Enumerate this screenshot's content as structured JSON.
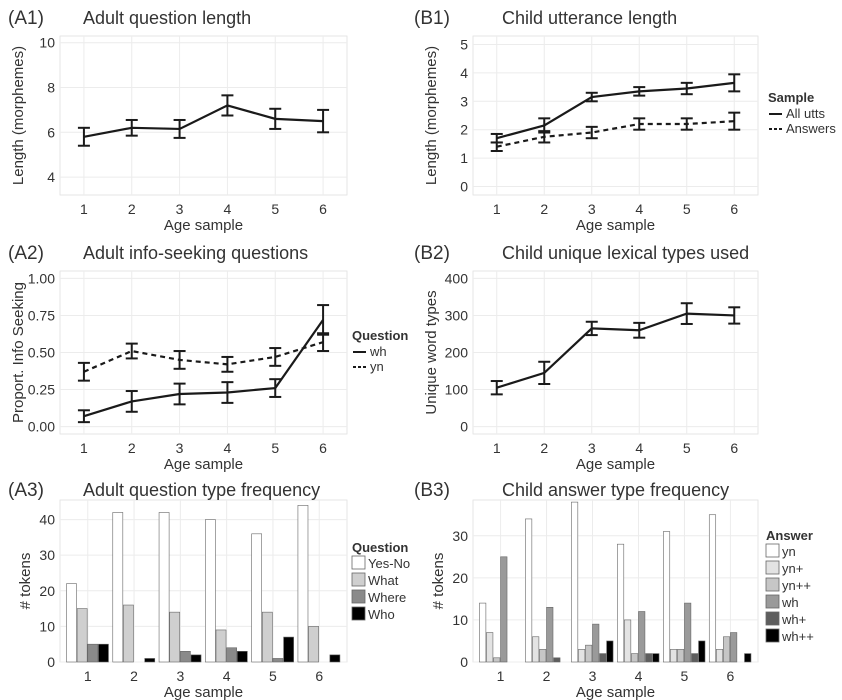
{
  "colors": {
    "panel_bg": "#ffffff",
    "grid": "#ececec",
    "axis_text": "#333333",
    "line": "#1a1a1a",
    "bar_outline": "#666666"
  },
  "chart_data": [
    {
      "id": "A1",
      "tag": "(A1)",
      "type": "line",
      "title": "Adult question length",
      "xlabel": "Age sample",
      "ylabel": "Length (morphemes)",
      "x": [
        1,
        2,
        3,
        4,
        5,
        6
      ],
      "xlim": [
        0.5,
        6.5
      ],
      "ylim": [
        3.2,
        10.3
      ],
      "yticks": [
        4,
        6,
        8,
        10
      ],
      "grid": true,
      "series": [
        {
          "name": "",
          "style": "solid",
          "values": [
            5.8,
            6.2,
            6.15,
            7.2,
            6.6,
            6.5
          ],
          "err": [
            0.4,
            0.35,
            0.4,
            0.45,
            0.45,
            0.5
          ]
        }
      ]
    },
    {
      "id": "B1",
      "tag": "(B1)",
      "type": "line",
      "title": "Child utterance length",
      "xlabel": "Age sample",
      "ylabel": "Length (morphemes)",
      "x": [
        1,
        2,
        3,
        4,
        5,
        6
      ],
      "xlim": [
        0.5,
        6.5
      ],
      "ylim": [
        -0.3,
        5.3
      ],
      "yticks": [
        0,
        1,
        2,
        3,
        4,
        5
      ],
      "grid": true,
      "legend": {
        "title": "Sample",
        "placement": "right"
      },
      "series": [
        {
          "name": "All utts",
          "style": "solid",
          "values": [
            1.7,
            2.15,
            3.15,
            3.35,
            3.45,
            3.65
          ],
          "err": [
            0.15,
            0.25,
            0.15,
            0.15,
            0.2,
            0.3
          ]
        },
        {
          "name": "Answers",
          "style": "dashed",
          "values": [
            1.4,
            1.75,
            1.9,
            2.2,
            2.2,
            2.3
          ],
          "err": [
            0.15,
            0.2,
            0.2,
            0.2,
            0.2,
            0.3
          ]
        }
      ]
    },
    {
      "id": "A2",
      "tag": "(A2)",
      "type": "line",
      "title": "Adult info-seeking questions",
      "xlabel": "Age sample",
      "ylabel": "Proport. Info Seeking",
      "x": [
        1,
        2,
        3,
        4,
        5,
        6
      ],
      "xlim": [
        0.5,
        6.5
      ],
      "ylim": [
        -0.05,
        1.05
      ],
      "yticks": [
        0.0,
        0.25,
        0.5,
        0.75,
        1.0
      ],
      "yticklabels": [
        "0.00",
        "0.25",
        "0.50",
        "0.75",
        "1.00"
      ],
      "grid": true,
      "legend": {
        "title": "Question",
        "placement": "right"
      },
      "series": [
        {
          "name": "wh",
          "style": "solid",
          "values": [
            0.07,
            0.17,
            0.22,
            0.23,
            0.26,
            0.72
          ],
          "err": [
            0.04,
            0.07,
            0.07,
            0.07,
            0.06,
            0.1
          ]
        },
        {
          "name": "yn",
          "style": "dashed",
          "values": [
            0.37,
            0.51,
            0.45,
            0.42,
            0.47,
            0.57
          ],
          "err": [
            0.06,
            0.05,
            0.06,
            0.05,
            0.06,
            0.06
          ]
        }
      ]
    },
    {
      "id": "B2",
      "tag": "(B2)",
      "type": "line",
      "title": "Child unique lexical types used",
      "xlabel": "Age sample",
      "ylabel": "Unique word types",
      "x": [
        1,
        2,
        3,
        4,
        5,
        6
      ],
      "xlim": [
        0.5,
        6.5
      ],
      "ylim": [
        -20,
        420
      ],
      "yticks": [
        0,
        100,
        200,
        300,
        400
      ],
      "grid": true,
      "series": [
        {
          "name": "",
          "style": "solid",
          "values": [
            105,
            145,
            265,
            260,
            305,
            300
          ],
          "err": [
            18,
            30,
            18,
            20,
            28,
            22
          ]
        }
      ]
    },
    {
      "id": "A3",
      "tag": "(A3)",
      "type": "bar",
      "title": "Adult question type frequency",
      "xlabel": "Age sample",
      "ylabel": "# tokens",
      "categories": [
        "1",
        "2",
        "3",
        "4",
        "5",
        "6"
      ],
      "ylim": [
        0,
        45.5
      ],
      "yticks": [
        0,
        10,
        20,
        30,
        40
      ],
      "grid": true,
      "legend": {
        "title": "Question",
        "placement": "right"
      },
      "series": [
        {
          "name": "Yes-No",
          "color": "#ffffff",
          "values": [
            22,
            42,
            42,
            40,
            36,
            44
          ]
        },
        {
          "name": "What",
          "color": "#cfcfcf",
          "values": [
            15,
            16,
            14,
            9,
            14,
            10
          ]
        },
        {
          "name": "Where",
          "color": "#8a8a8a",
          "values": [
            5,
            0,
            3,
            4,
            1,
            0
          ]
        },
        {
          "name": "Who",
          "color": "#000000",
          "values": [
            5,
            1,
            2,
            3,
            7,
            2
          ]
        }
      ]
    },
    {
      "id": "B3",
      "tag": "(B3)",
      "type": "bar",
      "title": "Child answer type frequency",
      "xlabel": "Age sample",
      "ylabel": "# tokens",
      "categories": [
        "1",
        "2",
        "3",
        "4",
        "5",
        "6"
      ],
      "ylim": [
        0,
        38.5
      ],
      "yticks": [
        0,
        10,
        20,
        30
      ],
      "grid": true,
      "legend": {
        "title": "Answer",
        "placement": "right"
      },
      "series": [
        {
          "name": "yn",
          "color": "#ffffff",
          "values": [
            14,
            34,
            38,
            28,
            31,
            35
          ]
        },
        {
          "name": "yn+",
          "color": "#e3e3e3",
          "values": [
            7,
            6,
            3,
            10,
            3,
            3
          ]
        },
        {
          "name": "yn++",
          "color": "#c6c6c6",
          "values": [
            1,
            3,
            4,
            2,
            3,
            6
          ]
        },
        {
          "name": "wh",
          "color": "#9a9a9a",
          "values": [
            25,
            13,
            9,
            12,
            14,
            7
          ]
        },
        {
          "name": "wh+",
          "color": "#5e5e5e",
          "values": [
            0,
            1,
            2,
            2,
            2,
            0
          ]
        },
        {
          "name": "wh++",
          "color": "#000000",
          "values": [
            0,
            0,
            5,
            2,
            5,
            2
          ]
        }
      ]
    }
  ]
}
